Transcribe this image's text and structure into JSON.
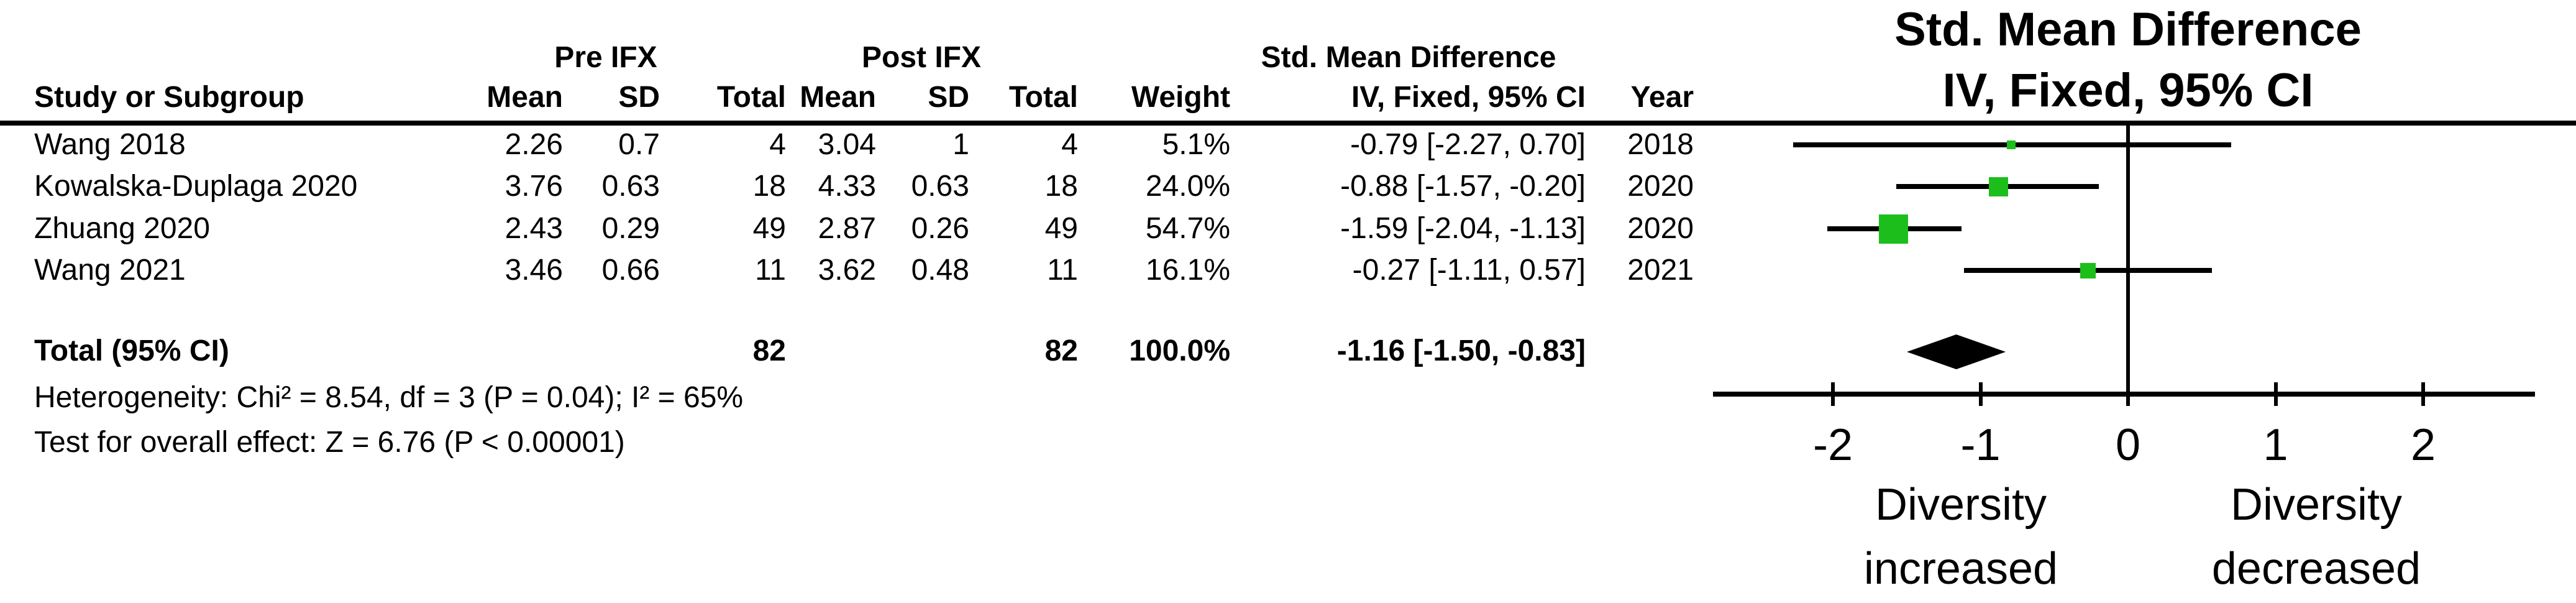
{
  "table": {
    "group_headers": {
      "pre": "Pre IFX",
      "post": "Post IFX",
      "smd": "Std. Mean Difference"
    },
    "columns": {
      "study": "Study or Subgroup",
      "mean": "Mean",
      "sd": "SD",
      "total": "Total",
      "weight": "Weight",
      "ci": "IV, Fixed, 95% CI",
      "year": "Year"
    },
    "total_row": {
      "label": "Total (95% CI)",
      "pre_total": "82",
      "post_total": "82",
      "weight": "100.0%",
      "ci": "-1.16 [-1.50, -0.83]"
    },
    "footnotes": {
      "heterogeneity": "Heterogeneity: Chi² = 8.54, df = 3 (P = 0.04); I² = 65%",
      "overall_effect": "Test for overall effect: Z = 6.76 (P < 0.00001)"
    }
  },
  "chart_data": {
    "type": "forest",
    "title": [
      "Std. Mean Difference",
      "IV, Fixed, 95% CI"
    ],
    "x_axis": {
      "ticks": [
        -2,
        -1,
        0,
        1,
        2
      ],
      "min": -2.81,
      "max": 2.76,
      "zero_line": 0
    },
    "labels": {
      "left": [
        "Diversity",
        "increased"
      ],
      "right": [
        "Diversity",
        "decreased"
      ]
    },
    "marker_color": "#1CBE1C",
    "studies": [
      {
        "study": "Wang 2018",
        "pre_mean": "2.26",
        "pre_sd": "0.7",
        "pre_total": "4",
        "post_mean": "3.04",
        "post_sd": "1",
        "post_total": "4",
        "weight": "5.1%",
        "weight_pct": 5.1,
        "est": -0.79,
        "ci_low": -2.27,
        "ci_high": 0.7,
        "ci_text": "-0.79 [-2.27, 0.70]",
        "year": "2018"
      },
      {
        "study": "Kowalska-Duplaga 2020",
        "pre_mean": "3.76",
        "pre_sd": "0.63",
        "pre_total": "18",
        "post_mean": "4.33",
        "post_sd": "0.63",
        "post_total": "18",
        "weight": "24.0%",
        "weight_pct": 24.0,
        "est": -0.88,
        "ci_low": -1.57,
        "ci_high": -0.2,
        "ci_text": "-0.88 [-1.57, -0.20]",
        "year": "2020"
      },
      {
        "study": "Zhuang 2020",
        "pre_mean": "2.43",
        "pre_sd": "0.29",
        "pre_total": "49",
        "post_mean": "2.87",
        "post_sd": "0.26",
        "post_total": "49",
        "weight": "54.7%",
        "weight_pct": 54.7,
        "est": -1.59,
        "ci_low": -2.04,
        "ci_high": -1.13,
        "ci_text": "-1.59 [-2.04, -1.13]",
        "year": "2020"
      },
      {
        "study": "Wang 2021",
        "pre_mean": "3.46",
        "pre_sd": "0.66",
        "pre_total": "11",
        "post_mean": "3.62",
        "post_sd": "0.48",
        "post_total": "11",
        "weight": "16.1%",
        "weight_pct": 16.1,
        "est": -0.27,
        "ci_low": -1.11,
        "ci_high": 0.57,
        "ci_text": "-0.27 [-1.11, 0.57]",
        "year": "2021"
      }
    ],
    "total": {
      "est": -1.16,
      "ci_low": -1.5,
      "ci_high": -0.83
    }
  }
}
